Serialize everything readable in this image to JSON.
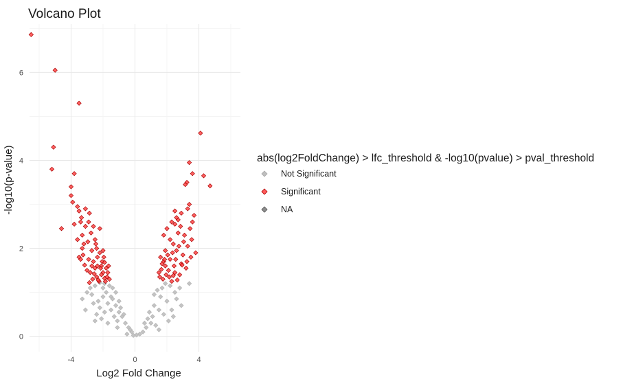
{
  "chart_data": {
    "type": "scatter",
    "title": "Volcano Plot",
    "xlabel": "Log2 Fold Change",
    "ylabel": "-log10(p-value)",
    "xlim": [
      -6.6,
      6.6
    ],
    "ylim": [
      -0.35,
      7.1
    ],
    "x_ticks": [
      -4,
      0,
      4
    ],
    "y_ticks": [
      0,
      2,
      4,
      6
    ],
    "grid": true,
    "legend": {
      "title": "abs(log2FoldChange) > lfc_threshold & -log10(pvalue) > pval_threshold",
      "placement": "right",
      "entries": [
        {
          "label": "Not Significant",
          "color": "#bebebe"
        },
        {
          "label": "Significant",
          "color": "#ff0000"
        },
        {
          "label": "NA",
          "color": "#7f7f7f"
        }
      ]
    },
    "series": [
      {
        "name": "Significant",
        "color": "#ff0000",
        "points": [
          [
            -6.5,
            6.86
          ],
          [
            -5.0,
            6.05
          ],
          [
            -3.5,
            5.3
          ],
          [
            -5.1,
            4.3
          ],
          [
            -5.2,
            3.8
          ],
          [
            -3.8,
            3.7
          ],
          [
            -4.6,
            2.45
          ],
          [
            -4.0,
            3.4
          ],
          [
            -4.0,
            3.2
          ],
          [
            -3.9,
            3.05
          ],
          [
            -3.6,
            2.95
          ],
          [
            -3.5,
            2.85
          ],
          [
            -3.1,
            2.9
          ],
          [
            -2.85,
            2.8
          ],
          [
            -2.9,
            2.6
          ],
          [
            -3.4,
            2.6
          ],
          [
            -3.8,
            2.55
          ],
          [
            -3.3,
            2.3
          ],
          [
            -2.6,
            2.5
          ],
          [
            -2.2,
            2.45
          ],
          [
            -2.5,
            2.2
          ],
          [
            -3.3,
            2.0
          ],
          [
            -3.5,
            1.8
          ],
          [
            -2.9,
            1.75
          ],
          [
            -2.2,
            1.9
          ],
          [
            -2.1,
            1.6
          ],
          [
            -2.0,
            1.45
          ],
          [
            -1.7,
            1.45
          ],
          [
            -2.5,
            1.55
          ],
          [
            -3.0,
            1.5
          ],
          [
            -2.4,
            1.35
          ],
          [
            -1.9,
            1.32
          ],
          [
            -1.65,
            1.6
          ],
          [
            -3.2,
            2.1
          ],
          [
            -2.7,
            1.95
          ],
          [
            -2.05,
            1.7
          ],
          [
            -2.35,
            1.8
          ],
          [
            -1.8,
            1.55
          ],
          [
            -3.4,
            1.75
          ],
          [
            -2.65,
            1.3
          ],
          [
            -2.25,
            1.25
          ],
          [
            -2.1,
            1.4
          ],
          [
            -1.75,
            1.35
          ],
          [
            -2.8,
            1.45
          ],
          [
            -3.6,
            2.2
          ],
          [
            -2.35,
            1.6
          ],
          [
            -2.75,
            2.35
          ],
          [
            -3.1,
            2.5
          ],
          [
            -1.95,
            1.8
          ],
          [
            -2.6,
            1.7
          ],
          [
            -3.15,
            1.62
          ],
          [
            -2.45,
            2.1
          ],
          [
            -1.85,
            1.25
          ],
          [
            -2.95,
            2.15
          ],
          [
            -3.25,
            1.85
          ],
          [
            -2.55,
            1.42
          ],
          [
            -2.15,
            1.55
          ],
          [
            -1.6,
            1.3
          ],
          [
            -2.0,
            1.95
          ],
          [
            -2.85,
            1.22
          ],
          [
            -3.35,
            2.7
          ],
          [
            -2.3,
            1.28
          ],
          [
            -2.7,
            1.6
          ],
          [
            -1.9,
            1.68
          ],
          [
            -2.4,
            2.0
          ],
          [
            4.1,
            4.62
          ],
          [
            3.4,
            3.95
          ],
          [
            3.6,
            3.7
          ],
          [
            4.3,
            3.65
          ],
          [
            4.7,
            3.42
          ],
          [
            3.25,
            3.5
          ],
          [
            3.15,
            3.45
          ],
          [
            3.4,
            3.0
          ],
          [
            3.3,
            2.9
          ],
          [
            2.5,
            2.85
          ],
          [
            2.9,
            2.8
          ],
          [
            2.7,
            2.65
          ],
          [
            3.7,
            2.75
          ],
          [
            3.6,
            2.6
          ],
          [
            2.3,
            2.6
          ],
          [
            2.5,
            2.55
          ],
          [
            2.0,
            2.45
          ],
          [
            1.8,
            2.3
          ],
          [
            2.7,
            2.35
          ],
          [
            2.4,
            2.1
          ],
          [
            3.05,
            2.15
          ],
          [
            3.3,
            2.05
          ],
          [
            2.6,
            1.95
          ],
          [
            1.9,
            1.95
          ],
          [
            3.0,
            1.85
          ],
          [
            3.8,
            1.9
          ],
          [
            3.5,
            1.8
          ],
          [
            2.2,
            1.75
          ],
          [
            2.9,
            1.65
          ],
          [
            1.8,
            1.7
          ],
          [
            1.6,
            1.8
          ],
          [
            2.1,
            1.5
          ],
          [
            2.5,
            1.45
          ],
          [
            1.5,
            1.45
          ],
          [
            2.8,
            1.4
          ],
          [
            3.2,
            1.55
          ],
          [
            1.75,
            1.3
          ],
          [
            2.3,
            1.25
          ],
          [
            1.9,
            1.6
          ],
          [
            2.55,
            1.75
          ],
          [
            2.15,
            1.35
          ],
          [
            1.65,
            1.52
          ],
          [
            2.95,
            1.62
          ],
          [
            3.45,
            2.45
          ],
          [
            2.75,
            2.05
          ],
          [
            1.95,
            1.4
          ],
          [
            2.45,
            1.6
          ],
          [
            3.1,
            2.3
          ],
          [
            2.35,
            1.9
          ],
          [
            1.7,
            1.65
          ],
          [
            2.65,
            1.28
          ],
          [
            2.05,
            1.85
          ],
          [
            3.25,
            1.7
          ],
          [
            2.85,
            2.5
          ],
          [
            1.55,
            1.35
          ],
          [
            2.2,
            2.2
          ],
          [
            3.55,
            2.2
          ],
          [
            2.6,
            2.7
          ],
          [
            1.85,
            1.75
          ],
          [
            2.4,
            1.38
          ]
        ]
      },
      {
        "name": "Not Significant",
        "color": "#bebebe",
        "points": [
          [
            3.4,
            1.2
          ],
          [
            -2.2,
            1.22
          ],
          [
            -1.9,
            1.2
          ],
          [
            -2.5,
            1.15
          ],
          [
            -2.0,
            1.1
          ],
          [
            -3.0,
            1.0
          ],
          [
            -2.7,
            0.95
          ],
          [
            -3.1,
            0.6
          ],
          [
            -2.2,
            0.65
          ],
          [
            -2.0,
            0.9
          ],
          [
            -1.8,
            1.0
          ],
          [
            -1.5,
            0.9
          ],
          [
            -1.7,
            0.75
          ],
          [
            -1.2,
            0.7
          ],
          [
            -1.5,
            0.6
          ],
          [
            -1.0,
            0.55
          ],
          [
            -0.8,
            0.45
          ],
          [
            -1.1,
            0.35
          ],
          [
            -0.6,
            0.3
          ],
          [
            -0.4,
            0.2
          ],
          [
            -0.2,
            0.1
          ],
          [
            -2.3,
            0.8
          ],
          [
            -2.6,
            0.75
          ],
          [
            -1.3,
            0.45
          ],
          [
            -1.9,
            0.55
          ],
          [
            -2.4,
            0.5
          ],
          [
            -1.6,
            1.15
          ],
          [
            -2.8,
            1.1
          ],
          [
            -1.4,
            1.1
          ],
          [
            -2.1,
            0.4
          ],
          [
            -1.2,
            1.0
          ],
          [
            -1.0,
            0.8
          ],
          [
            -0.9,
            0.65
          ],
          [
            -0.7,
            0.5
          ],
          [
            -1.7,
            0.3
          ],
          [
            -2.5,
            0.35
          ],
          [
            -3.3,
            0.85
          ],
          [
            -1.1,
            0.2
          ],
          [
            -0.5,
            0.05
          ],
          [
            -1.4,
            0.85
          ],
          [
            1.0,
            0.3
          ],
          [
            0.5,
            0.1
          ],
          [
            1.5,
            0.6
          ],
          [
            2.0,
            0.8
          ],
          [
            2.5,
            1.0
          ],
          [
            2.8,
            1.1
          ],
          [
            1.8,
            0.5
          ],
          [
            1.2,
            0.7
          ],
          [
            1.6,
            0.9
          ],
          [
            2.2,
            1.15
          ],
          [
            0.8,
            0.4
          ],
          [
            1.4,
            1.05
          ],
          [
            2.3,
            0.6
          ],
          [
            1.9,
            1.2
          ],
          [
            0.7,
            0.2
          ],
          [
            1.1,
            0.45
          ],
          [
            2.6,
            0.85
          ],
          [
            1.3,
            0.25
          ],
          [
            1.7,
            1.1
          ],
          [
            2.9,
            0.7
          ],
          [
            0.9,
            0.55
          ],
          [
            2.1,
            0.35
          ],
          [
            1.5,
            0.15
          ],
          [
            0.3,
            0.05
          ],
          [
            -0.1,
            0.02
          ],
          [
            0.1,
            0.03
          ],
          [
            0.6,
            0.3
          ],
          [
            -0.3,
            0.15
          ],
          [
            2.4,
            0.45
          ],
          [
            1.2,
            0.95
          ]
        ]
      }
    ]
  }
}
